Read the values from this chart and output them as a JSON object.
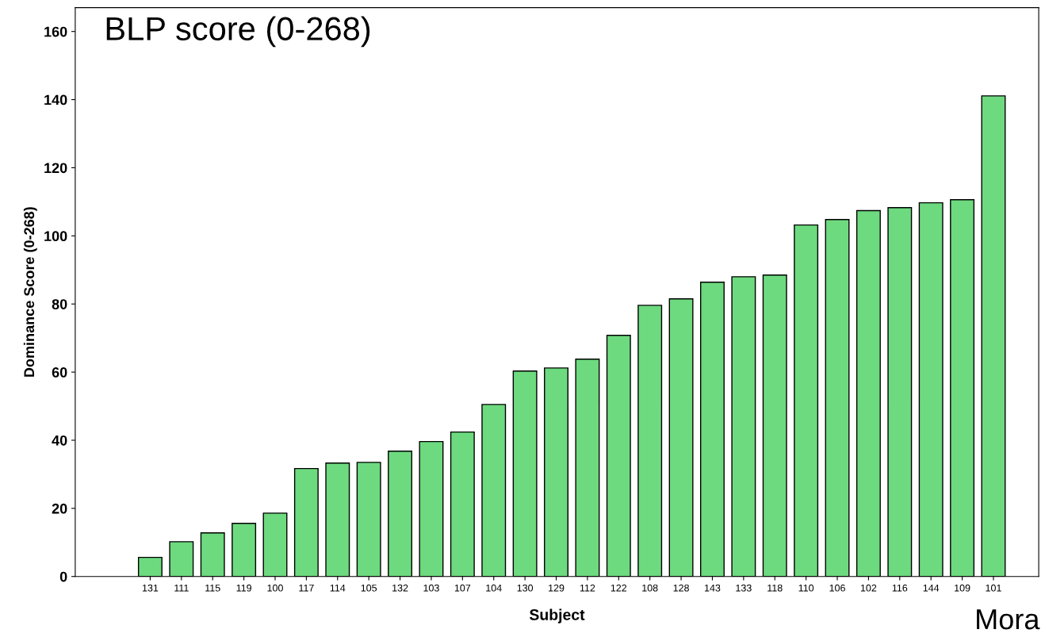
{
  "chart_data": {
    "type": "bar",
    "title": "BLP score (0-268)",
    "xlabel": "Subject",
    "ylabel": "Dominance Score (0-268)",
    "categories": [
      "131",
      "111",
      "115",
      "119",
      "100",
      "117",
      "114",
      "105",
      "132",
      "103",
      "107",
      "104",
      "130",
      "129",
      "112",
      "122",
      "108",
      "128",
      "143",
      "133",
      "118",
      "110",
      "106",
      "102",
      "116",
      "144",
      "109",
      "101"
    ],
    "values": [
      5.6,
      10.2,
      12.8,
      15.6,
      18.6,
      31.7,
      33.3,
      33.5,
      36.8,
      39.6,
      42.4,
      50.5,
      60.3,
      61.2,
      63.8,
      70.8,
      79.6,
      81.5,
      86.4,
      88.0,
      88.5,
      103.2,
      104.8,
      107.4,
      108.3,
      109.7,
      110.6,
      141.1
    ],
    "color": "#6dda7f",
    "ylim": [
      0,
      167
    ],
    "yticks": [
      0,
      20,
      40,
      60,
      80,
      100,
      120,
      140,
      160
    ],
    "grid": false,
    "legend": false,
    "annotations": [
      "Mora"
    ]
  }
}
